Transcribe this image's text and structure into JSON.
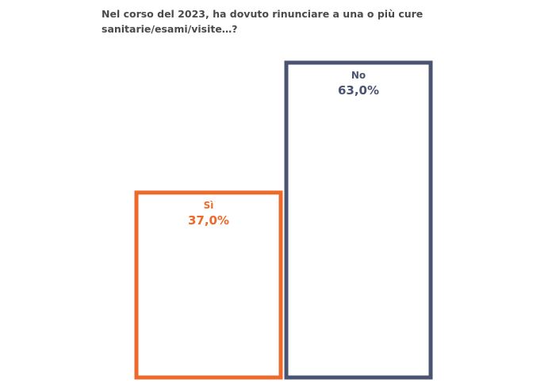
{
  "chart_data": {
    "type": "bar",
    "title": "Nel corso del 2023, ha dovuto rinunciare a una o più cure sanitarie/esami/visite…?",
    "categories": [
      "Sì",
      "No"
    ],
    "values": [
      37.0,
      63.0
    ],
    "value_labels": [
      "37,0%",
      "63,0%"
    ],
    "colors": [
      "#ee6a2a",
      "#4a5470"
    ],
    "ylim": [
      0,
      63
    ],
    "grid": false,
    "legend": "none",
    "xlabel": "",
    "ylabel": ""
  }
}
